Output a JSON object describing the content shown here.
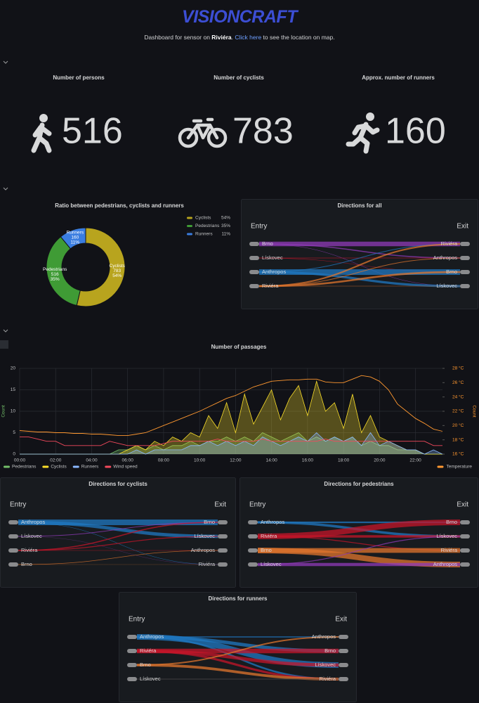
{
  "header": {
    "logo": "VISIONCRAFT",
    "text_before": "Dashboard for sensor on ",
    "location": "Riviéra",
    "text_mid": ". ",
    "link": "Click here",
    "text_after": " to see the location on map."
  },
  "stats": [
    {
      "title": "Number of persons",
      "value": 516
    },
    {
      "title": "Number of cyclists",
      "value": 783
    },
    {
      "title": "Approx. number of runners",
      "value": 160
    }
  ],
  "chart_data": [
    {
      "type": "pie",
      "donut": true,
      "legend": "right",
      "title": "Ratio between pedestrians, cyclists and runners",
      "categories": [
        "Cyclists",
        "Pedestrians",
        "Runners"
      ],
      "values": [
        783,
        516,
        160
      ],
      "percent_labels": [
        "54%",
        "35%",
        "11%"
      ],
      "colors": [
        "#b8a41e",
        "#3f9b35",
        "#3a7de0"
      ]
    },
    {
      "type": "line",
      "title": "Number of passages",
      "ylabel": "Count",
      "y2label": "Count",
      "grid": true,
      "legend": "bottom",
      "x": [
        0,
        0.5,
        1,
        1.5,
        2,
        2.5,
        3,
        3.5,
        4,
        4.5,
        5,
        5.5,
        6,
        6.5,
        7,
        7.5,
        8,
        8.5,
        9,
        9.5,
        10,
        10.5,
        11,
        11.5,
        12,
        12.5,
        13,
        13.5,
        14,
        14.5,
        15,
        15.5,
        16,
        16.5,
        17,
        17.5,
        18,
        18.5,
        19,
        19.5,
        20,
        20.5,
        21,
        21.5,
        22,
        22.5,
        23,
        23.5
      ],
      "xlim": [
        0,
        23.5
      ],
      "xticks": [
        {
          "value": 0,
          "label": "00:00"
        },
        {
          "value": 2,
          "label": "02:00"
        },
        {
          "value": 4,
          "label": "04:00"
        },
        {
          "value": 6,
          "label": "06:00"
        },
        {
          "value": 8,
          "label": "08:00"
        },
        {
          "value": 10,
          "label": "10:00"
        },
        {
          "value": 12,
          "label": "12:00"
        },
        {
          "value": 14,
          "label": "14:00"
        },
        {
          "value": 16,
          "label": "16:00"
        },
        {
          "value": 18,
          "label": "18:00"
        },
        {
          "value": 20,
          "label": "20:00"
        },
        {
          "value": 22,
          "label": "22:00"
        }
      ],
      "ylim": [
        0,
        20
      ],
      "yticks": [
        0,
        5,
        10,
        15,
        20
      ],
      "y2lim": [
        16,
        28
      ],
      "y2ticks": [
        {
          "value": 16,
          "label": "16 °C"
        },
        {
          "value": 18,
          "label": "18 °C"
        },
        {
          "value": 20,
          "label": "20 °C"
        },
        {
          "value": 22,
          "label": "22 °C"
        },
        {
          "value": 24,
          "label": "24 °C"
        },
        {
          "value": 26,
          "label": "26 °C"
        },
        {
          "value": 28,
          "label": "28 °C"
        }
      ],
      "series": [
        {
          "name": "Pedestrians",
          "color": "#73bf69",
          "area": true,
          "values": [
            0,
            0,
            0,
            0,
            0,
            0,
            0,
            0,
            0,
            0,
            0,
            1,
            1,
            2,
            1,
            2,
            1,
            2,
            2,
            3,
            2,
            3,
            3,
            4,
            3,
            4,
            3,
            5,
            4,
            3,
            4,
            5,
            3,
            4,
            3,
            4,
            3,
            4,
            2,
            3,
            2,
            2,
            1,
            1,
            1,
            0,
            0,
            0
          ]
        },
        {
          "name": "Cyclists",
          "color": "#fade2a",
          "area": true,
          "values": [
            0,
            0,
            0,
            0,
            0,
            0,
            0,
            0,
            0,
            0,
            0,
            0,
            1,
            2,
            1,
            3,
            2,
            4,
            3,
            5,
            4,
            9,
            6,
            12,
            5,
            14,
            7,
            11,
            15,
            8,
            13,
            16,
            9,
            17,
            10,
            12,
            6,
            14,
            5,
            9,
            4,
            3,
            2,
            1,
            1,
            0,
            0,
            0
          ]
        },
        {
          "name": "Runners",
          "color": "#8ab8ff",
          "area": true,
          "values": [
            0,
            0,
            0,
            0,
            0,
            0,
            0,
            0,
            0,
            0,
            0,
            0,
            0,
            1,
            0,
            1,
            1,
            1,
            1,
            2,
            2,
            3,
            2,
            3,
            2,
            3,
            2,
            4,
            3,
            2,
            3,
            4,
            3,
            5,
            3,
            4,
            3,
            4,
            2,
            5,
            2,
            3,
            2,
            1,
            1,
            0,
            1,
            0
          ]
        },
        {
          "name": "Wind speed",
          "color": "#f2495c",
          "area": false,
          "values": [
            4,
            4,
            3.5,
            3,
            3,
            2,
            2,
            2,
            2,
            2,
            3,
            2.5,
            2,
            2,
            2,
            2,
            2.5,
            3,
            3,
            3,
            3,
            3,
            3.5,
            3,
            3,
            3,
            3,
            3.5,
            3,
            3,
            3,
            3,
            3,
            3,
            3.5,
            3,
            3,
            3,
            3,
            3,
            3,
            3,
            3,
            3,
            3,
            3,
            2,
            2
          ]
        },
        {
          "name": "Temperature",
          "color": "#ff9830",
          "area": false,
          "axis": "y2",
          "values": [
            19.3,
            19.2,
            19.1,
            19.1,
            19,
            19,
            18.9,
            18.9,
            18.8,
            18.8,
            18.7,
            18.6,
            18.6,
            18.8,
            19,
            19.5,
            20,
            20.5,
            21,
            21.5,
            22,
            22.6,
            23.2,
            23.8,
            24.2,
            24.8,
            25.4,
            25.8,
            26.2,
            26.3,
            26.4,
            26.4,
            26.5,
            26.5,
            26.1,
            26,
            26,
            26.5,
            27,
            26.8,
            26.2,
            25,
            23,
            22,
            21,
            20.3,
            19.5,
            19.2
          ]
        }
      ]
    }
  ],
  "sankeys": [
    {
      "title": "Directions for all",
      "entry_label": "Entry",
      "exit_label": "Exit",
      "entries": [
        "Brno",
        "Lískovec",
        "Anthropos",
        "Riviéra"
      ],
      "entry_colors": [
        "#8f3bb8",
        "#c4162a",
        "#1f78c1",
        "#e0752d"
      ],
      "exits": [
        "Riviéra",
        "Anthropos",
        "Brno",
        "Lískovec"
      ],
      "links": [
        {
          "source": "Brno",
          "target": "Riviéra",
          "value": 120
        },
        {
          "source": "Brno",
          "target": "Anthropos",
          "value": 30
        },
        {
          "source": "Brno",
          "target": "Lískovec",
          "value": 10
        },
        {
          "source": "Lískovec",
          "target": "Anthropos",
          "value": 15
        },
        {
          "source": "Lískovec",
          "target": "Brno",
          "value": 10
        },
        {
          "source": "Anthropos",
          "target": "Brno",
          "value": 150
        },
        {
          "source": "Anthropos",
          "target": "Lískovec",
          "value": 60
        },
        {
          "source": "Anthropos",
          "target": "Riviéra",
          "value": 20
        },
        {
          "source": "Riviéra",
          "target": "Riviéra",
          "value": 40
        },
        {
          "source": "Riviéra",
          "target": "Brno",
          "value": 50
        },
        {
          "source": "Riviéra",
          "target": "Anthropos",
          "value": 20
        },
        {
          "source": "Riviéra",
          "target": "Lískovec",
          "value": 10
        }
      ]
    },
    {
      "title": "Directions for cyclists",
      "entry_label": "Entry",
      "exit_label": "Exit",
      "entries": [
        "Anthropos",
        "Lískovec",
        "Riviéra",
        "Brno"
      ],
      "entry_colors": [
        "#1f78c1",
        "#8f3bb8",
        "#c4162a",
        "#e0752d"
      ],
      "exits": [
        "Brno",
        "Lískovec",
        "Anthropos",
        "Riviéra"
      ],
      "links": [
        {
          "source": "Anthropos",
          "target": "Brno",
          "value": 300
        },
        {
          "source": "Anthropos",
          "target": "Lískovec",
          "value": 180
        },
        {
          "source": "Anthropos",
          "target": "Riviéra",
          "value": 20
        },
        {
          "source": "Lískovec",
          "target": "Brno",
          "value": 40
        },
        {
          "source": "Lískovec",
          "target": "Riviéra",
          "value": 10
        },
        {
          "source": "Riviéra",
          "target": "Brno",
          "value": 60
        },
        {
          "source": "Riviéra",
          "target": "Lískovec",
          "value": 50
        },
        {
          "source": "Riviéra",
          "target": "Anthropos",
          "value": 20
        },
        {
          "source": "Brno",
          "target": "Anthropos",
          "value": 30
        },
        {
          "source": "Brno",
          "target": "Riviéra",
          "value": 10
        }
      ]
    },
    {
      "title": "Directions for pedestrians",
      "entry_label": "Entry",
      "exit_label": "Exit",
      "entries": [
        "Anthropos",
        "Riviéra",
        "Brno",
        "Lískovec"
      ],
      "entry_colors": [
        "#1f78c1",
        "#c4162a",
        "#e0752d",
        "#8f3bb8"
      ],
      "exits": [
        "Brno",
        "Lískovec",
        "Riviéra",
        "Anthropos"
      ],
      "links": [
        {
          "source": "Anthropos",
          "target": "Brno",
          "value": 20
        },
        {
          "source": "Anthropos",
          "target": "Lískovec",
          "value": 30
        },
        {
          "source": "Riviéra",
          "target": "Brno",
          "value": 70
        },
        {
          "source": "Riviéra",
          "target": "Lískovec",
          "value": 30
        },
        {
          "source": "Riviéra",
          "target": "Riviéra",
          "value": 10
        },
        {
          "source": "Brno",
          "target": "Riviéra",
          "value": 60
        },
        {
          "source": "Brno",
          "target": "Anthropos",
          "value": 70
        },
        {
          "source": "Lískovec",
          "target": "Anthropos",
          "value": 40
        },
        {
          "source": "Lískovec",
          "target": "Lískovec",
          "value": 10
        }
      ]
    },
    {
      "title": "Directions for runners",
      "entry_label": "Entry",
      "exit_label": "Exit",
      "entries": [
        "Anthropos",
        "Riviéra",
        "Brno",
        "Lískovec"
      ],
      "entry_colors": [
        "#1f78c1",
        "#c4162a",
        "#e0752d",
        "#444444"
      ],
      "exits": [
        "Anthropos",
        "Brno",
        "Lískovec",
        "Riviéra"
      ],
      "links": [
        {
          "source": "Anthropos",
          "target": "Anthropos",
          "value": 5
        },
        {
          "source": "Anthropos",
          "target": "Brno",
          "value": 15
        },
        {
          "source": "Anthropos",
          "target": "Lískovec",
          "value": 25
        },
        {
          "source": "Anthropos",
          "target": "Riviéra",
          "value": 8
        },
        {
          "source": "Riviéra",
          "target": "Brno",
          "value": 20
        },
        {
          "source": "Riviéra",
          "target": "Lískovec",
          "value": 15
        },
        {
          "source": "Riviéra",
          "target": "Riviéra",
          "value": 10
        },
        {
          "source": "Brno",
          "target": "Riviéra",
          "value": 12
        },
        {
          "source": "Brno",
          "target": "Anthropos",
          "value": 6
        },
        {
          "source": "Lískovec",
          "target": "Riviéra",
          "value": 4
        }
      ]
    }
  ]
}
